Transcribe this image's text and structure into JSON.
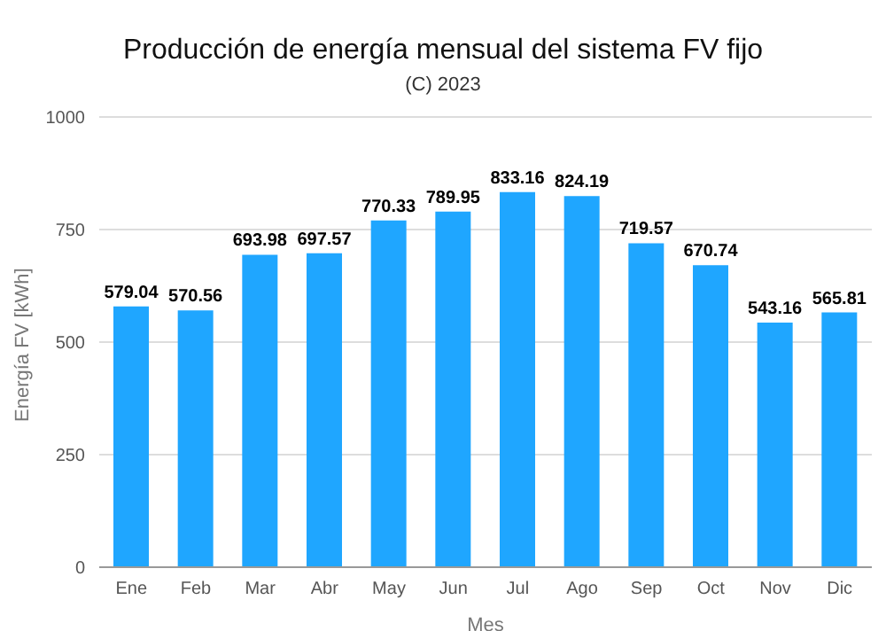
{
  "chart_data": {
    "type": "bar",
    "title": "Producción de energía mensual del sistema FV fijo",
    "subtitle": "(C) 2023",
    "xlabel": "Mes",
    "ylabel": "Energía FV [kWh]",
    "categories": [
      "Ene",
      "Feb",
      "Mar",
      "Abr",
      "May",
      "Jun",
      "Jul",
      "Ago",
      "Sep",
      "Oct",
      "Nov",
      "Dic"
    ],
    "values": [
      579.04,
      570.56,
      693.98,
      697.57,
      770.33,
      789.95,
      833.16,
      824.19,
      719.57,
      670.74,
      543.16,
      565.81
    ],
    "color": "#1fa6ff",
    "ylim": [
      0,
      1000
    ],
    "yticks": [
      0,
      250,
      500,
      750,
      1000
    ],
    "grid": "y",
    "data_labels": true
  }
}
